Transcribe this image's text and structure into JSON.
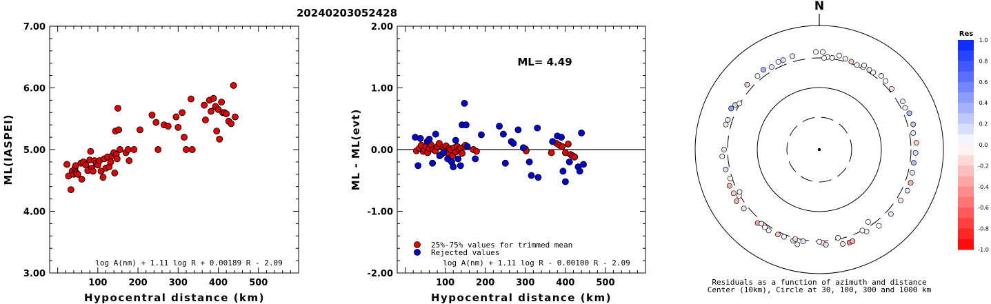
{
  "header": {
    "event_id": "20240203052428"
  },
  "chart_data": [
    {
      "type": "scatter",
      "ylabel": "ML(IASPEI)",
      "xlabel": "Hypocentral distance (km)",
      "formula": "log A(nm) + 1.11 log R + 0.00189 R - 2.09",
      "xlim": [
        -20,
        600
      ],
      "ylim": [
        3.0,
        7.0
      ],
      "x_ticks": [
        "100",
        "200",
        "300",
        "400",
        "500"
      ],
      "y_ticks": [
        "3.00",
        "4.00",
        "5.00",
        "6.00",
        "7.00"
      ],
      "marker_color": "#dd0000",
      "points": [
        [
          23,
          4.76
        ],
        [
          27,
          4.57
        ],
        [
          33,
          4.35
        ],
        [
          36,
          4.65
        ],
        [
          40,
          4.6
        ],
        [
          43,
          4.7
        ],
        [
          45,
          4.74
        ],
        [
          47,
          4.62
        ],
        [
          50,
          4.6
        ],
        [
          58,
          4.78
        ],
        [
          60,
          4.52
        ],
        [
          64,
          4.8
        ],
        [
          70,
          4.75
        ],
        [
          75,
          4.66
        ],
        [
          80,
          4.83
        ],
        [
          82,
          4.97
        ],
        [
          85,
          4.7
        ],
        [
          88,
          4.65
        ],
        [
          92,
          4.82
        ],
        [
          96,
          4.78
        ],
        [
          100,
          4.75
        ],
        [
          104,
          4.82
        ],
        [
          108,
          4.65
        ],
        [
          113,
          4.55
        ],
        [
          116,
          4.85
        ],
        [
          120,
          4.7
        ],
        [
          124,
          4.88
        ],
        [
          128,
          4.72
        ],
        [
          132,
          4.8
        ],
        [
          136,
          4.9
        ],
        [
          140,
          4.95
        ],
        [
          142,
          4.62
        ],
        [
          144,
          5.3
        ],
        [
          146,
          4.92
        ],
        [
          148,
          4.85
        ],
        [
          150,
          5.67
        ],
        [
          152,
          5.32
        ],
        [
          155,
          5.0
        ],
        [
          170,
          4.95
        ],
        [
          175,
          5.0
        ],
        [
          178,
          4.82
        ],
        [
          190,
          5.0
        ],
        [
          205,
          5.32
        ],
        [
          235,
          5.56
        ],
        [
          245,
          5.44
        ],
        [
          250,
          5.0
        ],
        [
          265,
          5.4
        ],
        [
          275,
          5.38
        ],
        [
          295,
          5.53
        ],
        [
          300,
          5.36
        ],
        [
          310,
          5.6
        ],
        [
          315,
          5.2
        ],
        [
          320,
          5.0
        ],
        [
          332,
          5.82
        ],
        [
          335,
          5.0
        ],
        [
          365,
          5.72
        ],
        [
          368,
          5.48
        ],
        [
          378,
          5.8
        ],
        [
          382,
          5.62
        ],
        [
          388,
          5.83
        ],
        [
          393,
          5.7
        ],
        [
          396,
          5.3
        ],
        [
          400,
          5.65
        ],
        [
          403,
          5.17
        ],
        [
          408,
          5.77
        ],
        [
          411,
          5.6
        ],
        [
          415,
          5.6
        ],
        [
          420,
          5.58
        ],
        [
          426,
          5.46
        ],
        [
          432,
          5.42
        ],
        [
          438,
          6.04
        ],
        [
          442,
          5.53
        ]
      ]
    },
    {
      "type": "scatter",
      "ylabel": "ML - ML(evt)",
      "xlabel": "Hypocentral distance (km)",
      "annotation": "ML= 4.49",
      "formula": "log A(nm) + 1.11 log R - 0.00100 R - 2.09",
      "xlim": [
        -20,
        600
      ],
      "ylim": [
        -2.0,
        2.0
      ],
      "x_ticks": [
        "100",
        "200",
        "300",
        "400",
        "500"
      ],
      "y_ticks": [
        "-2.00",
        "-1.00",
        "0.00",
        "1.00",
        "2.00"
      ],
      "legend": [
        {
          "label": "25%-75% values for trimmed mean",
          "color": "#dd0000"
        },
        {
          "label": "Rejected values",
          "color": "#0000cc"
        }
      ],
      "series": [
        {
          "name": "25%-75% values for trimmed mean",
          "color": "#dd0000",
          "points": [
            [
              28,
              -0.02
            ],
            [
              35,
              0.02
            ],
            [
              40,
              0.07
            ],
            [
              45,
              -0.03
            ],
            [
              48,
              0.0
            ],
            [
              52,
              0.05
            ],
            [
              56,
              -0.05
            ],
            [
              60,
              0.02
            ],
            [
              64,
              0.08
            ],
            [
              70,
              0.0
            ],
            [
              75,
              -0.02
            ],
            [
              80,
              0.05
            ],
            [
              85,
              0.1
            ],
            [
              90,
              -0.08
            ],
            [
              94,
              0.03
            ],
            [
              98,
              0.0
            ],
            [
              102,
              0.06
            ],
            [
              106,
              -0.05
            ],
            [
              110,
              0.02
            ],
            [
              114,
              0.0
            ],
            [
              118,
              -0.1
            ],
            [
              122,
              0.03
            ],
            [
              126,
              -0.04
            ],
            [
              130,
              0.05
            ],
            [
              134,
              0.0
            ],
            [
              138,
              0.02
            ],
            [
              142,
              -0.06
            ],
            [
              146,
              0.04
            ],
            [
              150,
              0.07
            ],
            [
              170,
              0.0
            ],
            [
              178,
              -0.03
            ],
            [
              300,
              0.01
            ],
            [
              302,
              -0.02
            ],
            [
              365,
              -0.05
            ],
            [
              378,
              0.1
            ],
            [
              385,
              0.07
            ],
            [
              392,
              0.05
            ],
            [
              400,
              -0.05
            ],
            [
              407,
              0.09
            ],
            [
              413,
              -0.08
            ],
            [
              418,
              -0.1
            ],
            [
              423,
              -0.12
            ]
          ]
        },
        {
          "name": "Rejected values",
          "color": "#0000cc",
          "points": [
            [
              25,
              0.2
            ],
            [
              32,
              -0.26
            ],
            [
              38,
              0.18
            ],
            [
              55,
              0.13
            ],
            [
              60,
              0.17
            ],
            [
              68,
              -0.22
            ],
            [
              76,
              0.25
            ],
            [
              86,
              -0.1
            ],
            [
              96,
              -0.05
            ],
            [
              106,
              -0.15
            ],
            [
              116,
              -0.2
            ],
            [
              120,
              -0.28
            ],
            [
              126,
              0.15
            ],
            [
              132,
              -0.15
            ],
            [
              138,
              -0.26
            ],
            [
              142,
              0.4
            ],
            [
              148,
              0.75
            ],
            [
              152,
              0.4
            ],
            [
              155,
              0.05
            ],
            [
              175,
              -0.15
            ],
            [
              190,
              0.24
            ],
            [
              235,
              0.38
            ],
            [
              245,
              0.25
            ],
            [
              250,
              -0.22
            ],
            [
              265,
              0.13
            ],
            [
              270,
              0.1
            ],
            [
              282,
              0.32
            ],
            [
              295,
              0.03
            ],
            [
              310,
              -0.2
            ],
            [
              315,
              -0.42
            ],
            [
              330,
              0.35
            ],
            [
              332,
              -0.45
            ],
            [
              368,
              0.13
            ],
            [
              380,
              0.22
            ],
            [
              390,
              0.2
            ],
            [
              394,
              -0.35
            ],
            [
              400,
              -0.52
            ],
            [
              410,
              -0.2
            ],
            [
              432,
              -0.28
            ],
            [
              436,
              -0.35
            ],
            [
              440,
              0.27
            ],
            [
              445,
              -0.24
            ]
          ]
        }
      ]
    },
    {
      "type": "scatter",
      "subtype": "polar",
      "north_label": "N",
      "caption_line1": "Residuals as a function of azimuth and distance",
      "caption_line2": "Center (10km), Circle at 30, 100, 300 and 1000 km",
      "colorbar": {
        "title": "Res",
        "ticks": [
          "1.0",
          "0.8",
          "0.6",
          "0.4",
          "0.2",
          "0.0",
          "-0.2",
          "-0.4",
          "-0.6",
          "-0.8",
          "-1.0"
        ],
        "positive_color": "#0022ff",
        "negative_color": "#ff0000"
      },
      "points": [
        [
          358,
          430,
          0.0
        ],
        [
          2,
          430,
          0.0
        ],
        [
          344,
          420,
          0.1
        ],
        [
          338,
          405,
          0.15
        ],
        [
          335,
          410,
          0.05
        ],
        [
          325,
          425,
          0.35
        ],
        [
          320,
          395,
          0.0
        ],
        [
          312,
          415,
          -0.2
        ],
        [
          298,
          375,
          0.2
        ],
        [
          295,
          420,
          0.4
        ],
        [
          288,
          395,
          0.1
        ],
        [
          285,
          410,
          -0.1
        ],
        [
          270,
          375,
          0.1
        ],
        [
          266,
          420,
          -0.05
        ],
        [
          258,
          385,
          0.15
        ],
        [
          248,
          410,
          -0.3
        ],
        [
          243,
          395,
          -0.2
        ],
        [
          238,
          425,
          -0.3
        ],
        [
          232,
          385,
          0.1
        ],
        [
          220,
          390,
          -0.35
        ],
        [
          215,
          370,
          0.0
        ],
        [
          212,
          380,
          0.0
        ],
        [
          202,
          350,
          0.05
        ],
        [
          196,
          365,
          0.1
        ],
        [
          193,
          420,
          -0.05
        ],
        [
          190,
          330,
          0.1
        ],
        [
          178,
          330,
          -0.15
        ],
        [
          176,
          380,
          0.15
        ],
        [
          166,
          420,
          -0.1
        ],
        [
          162,
          430,
          -0.45
        ],
        [
          160,
          425,
          -0.3
        ],
        [
          150,
          360,
          0.0
        ],
        [
          142,
          410,
          0.0
        ],
        [
          132,
          400,
          0.1
        ],
        [
          122,
          390,
          -0.1
        ],
        [
          115,
          420,
          0.1
        ],
        [
          110,
          420,
          -0.3
        ],
        [
          104,
          390,
          0.1
        ],
        [
          98,
          380,
          0.3
        ],
        [
          92,
          400,
          0.15
        ],
        [
          86,
          420,
          -0.2
        ],
        [
          80,
          380,
          0.1
        ],
        [
          75,
          420,
          0.25
        ],
        [
          68,
          415,
          0.3
        ],
        [
          64,
          380,
          0.05
        ],
        [
          60,
          400,
          0.1
        ],
        [
          50,
          360,
          -0.1
        ],
        [
          44,
          380,
          0.0
        ],
        [
          40,
          400,
          0.05
        ],
        [
          35,
          350,
          0.0
        ],
        [
          32,
          355,
          0.1
        ],
        [
          28,
          340,
          0.0
        ],
        [
          24,
          320,
          0.05
        ],
        [
          20,
          340,
          -0.2
        ],
        [
          16,
          360,
          0.1
        ],
        [
          12,
          395,
          0.0
        ],
        [
          8,
          320,
          -0.05
        ],
        [
          5,
          325,
          0.0
        ],
        [
          3,
          300,
          0.0
        ],
        [
          28,
          380,
          0.0
        ],
        [
          240,
          320,
          0.0
        ],
        [
          242,
          290,
          -0.05
        ],
        [
          300,
          310,
          0.0
        ],
        [
          195,
          320,
          -0.15
        ],
        [
          180,
          310,
          0.0
        ],
        [
          152,
          300,
          0.0
        ],
        [
          146,
          270,
          0.0
        ],
        [
          168,
          290,
          0.0
        ],
        [
          206,
          360,
          -0.25
        ],
        [
          252,
          340,
          0.0
        ],
        [
          218,
          350,
          -0.1
        ],
        [
          330,
          380,
          0.1
        ]
      ]
    }
  ]
}
